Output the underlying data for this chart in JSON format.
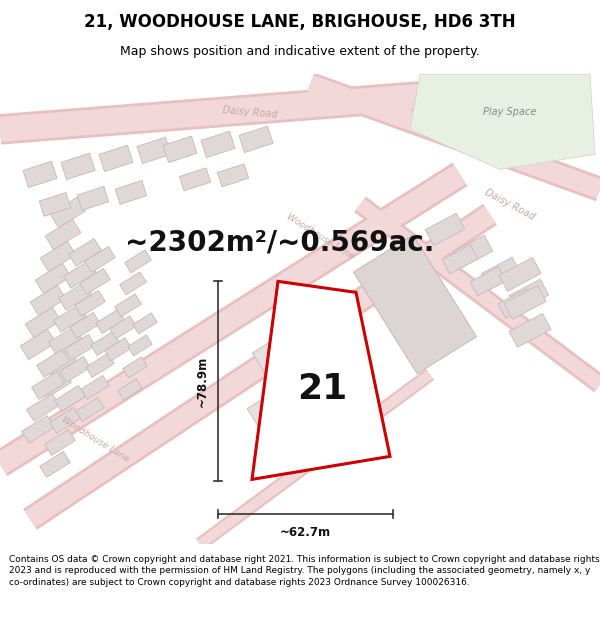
{
  "title": "21, WOODHOUSE LANE, BRIGHOUSE, HD6 3TH",
  "subtitle": "Map shows position and indicative extent of the property.",
  "area_text": "~2302m²/~0.569ac.",
  "property_number": "21",
  "dim_width": "~62.7m",
  "dim_height": "~78.9m",
  "footnote": "Contains OS data © Crown copyright and database right 2021. This information is subject to Crown copyright and database rights 2023 and is reproduced with the permission of HM Land Registry. The polygons (including the associated geometry, namely x, y co-ordinates) are subject to Crown copyright and database rights 2023 Ordnance Survey 100026316.",
  "bg_color": "#ffffff",
  "map_bg": "#f7f2f2",
  "road_fill": "#f2d8d8",
  "road_edge": "#e8c0c0",
  "bld_fill": "#e0d8d8",
  "bld_edge": "#c8b8b8",
  "prop_fill": "#ffffff",
  "prop_edge": "#cc0000",
  "green_fill": "#e8f0e4",
  "green_edge": "#c8d8c0",
  "road_lbl": "#c8a8a8",
  "dim_col": "#333333",
  "txt_col": "#111111",
  "play_lbl": "#888888",
  "title_fs": 12,
  "sub_fs": 9,
  "area_fs": 20,
  "foot_fs": 6.5,
  "lbl_fs": 7,
  "dim_fs": 8.5,
  "prop_fs": 26
}
